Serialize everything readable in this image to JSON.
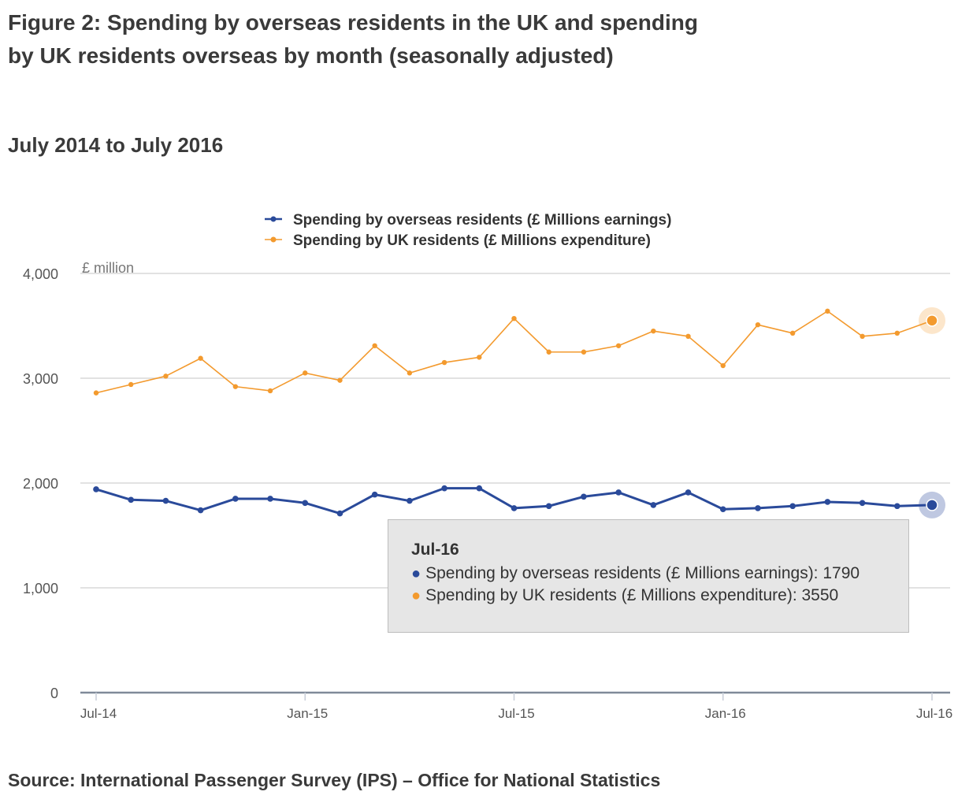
{
  "figure": {
    "title": "Figure 2: Spending by overseas residents in the UK and spending by UK residents overseas by month (seasonally adjusted)",
    "subtitle": "July 2014 to July 2016",
    "source": "Source: International Passenger Survey (IPS) – Office for National  Statistics"
  },
  "colors": {
    "overseas": "#2a4a9a",
    "uk": "#f39a2e",
    "grid": "#d9d9d9",
    "axis": "#7f8a99"
  },
  "chart_data": {
    "type": "line",
    "y_unit_label": "£ million",
    "x": [
      "Jul-14",
      "Aug-14",
      "Sep-14",
      "Oct-14",
      "Nov-14",
      "Dec-14",
      "Jan-15",
      "Feb-15",
      "Mar-15",
      "Apr-15",
      "May-15",
      "Jun-15",
      "Jul-15",
      "Aug-15",
      "Sep-15",
      "Oct-15",
      "Nov-15",
      "Dec-15",
      "Jan-16",
      "Feb-16",
      "Mar-16",
      "Apr-16",
      "May-16",
      "Jun-16",
      "Jul-16"
    ],
    "x_tick_labels": [
      "Jul-14",
      "Jan-15",
      "Jul-15",
      "Jan-16",
      "Jul-16"
    ],
    "y_ticks": [
      0,
      1000,
      2000,
      3000,
      4000
    ],
    "y_tick_labels": [
      "0",
      "1,000",
      "2,000",
      "3,000",
      "4,000"
    ],
    "ylim": [
      0,
      4000
    ],
    "grid": true,
    "legend_position": "top-center",
    "series": [
      {
        "name": "Spending by overseas residents (£ Millions earnings)",
        "color": "#2a4a9a",
        "values": [
          1940,
          1840,
          1830,
          1740,
          1850,
          1850,
          1810,
          1710,
          1890,
          1830,
          1950,
          1950,
          1760,
          1780,
          1870,
          1910,
          1790,
          1910,
          1750,
          1760,
          1780,
          1820,
          1810,
          1780,
          1790
        ]
      },
      {
        "name": "Spending by UK residents (£ Millions expenditure)",
        "color": "#f39a2e",
        "values": [
          2860,
          2940,
          3020,
          3190,
          2920,
          2880,
          3050,
          2980,
          3310,
          3050,
          3150,
          3200,
          3570,
          3250,
          3250,
          3310,
          3450,
          3400,
          3120,
          3510,
          3430,
          3640,
          3400,
          3430,
          3550
        ]
      }
    ]
  },
  "tooltip": {
    "header": "Jul-16",
    "line1": "Spending by overseas residents (£ Millions earnings): 1790",
    "line2": "Spending by UK residents (£ Millions expenditure): 3550"
  }
}
